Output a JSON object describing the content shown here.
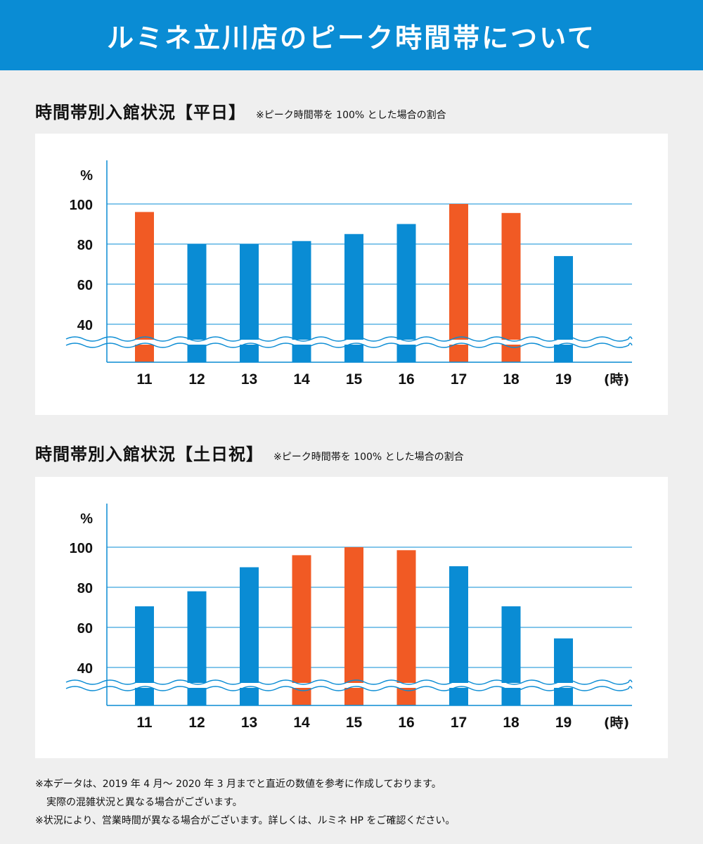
{
  "page": {
    "title": "ルミネ立川店のピーク時間帯について"
  },
  "colors": {
    "banner": "#0a8cd4",
    "bar_normal": "#0a8cd4",
    "bar_peak": "#f15a24",
    "grid": "#0a8cd4",
    "background": "#efefef",
    "panel": "#ffffff"
  },
  "sections": [
    {
      "title": "時間帯別入館状況【平日】",
      "note": "※ピーク時間帯を 100% とした場合の割合"
    },
    {
      "title": "時間帯別入館状況【土日祝】",
      "note": "※ピーク時間帯を 100% とした場合の割合"
    }
  ],
  "chart_data": [
    {
      "type": "bar",
      "categories": [
        "11",
        "12",
        "13",
        "14",
        "15",
        "16",
        "17",
        "18",
        "19"
      ],
      "values": [
        96,
        80,
        80,
        81.5,
        85,
        90,
        100,
        95.5,
        74
      ],
      "highlight": [
        true,
        false,
        false,
        false,
        false,
        false,
        true,
        true,
        false
      ],
      "y_unit": "%",
      "x_unit": "(時)",
      "yticks": [
        100,
        80,
        60,
        40
      ],
      "ylim": [
        30,
        100
      ],
      "axis_break": true,
      "grid": true
    },
    {
      "type": "bar",
      "categories": [
        "11",
        "12",
        "13",
        "14",
        "15",
        "16",
        "17",
        "18",
        "19"
      ],
      "values": [
        70.5,
        78,
        90,
        96,
        100,
        98.5,
        90.5,
        70.5,
        54.5
      ],
      "highlight": [
        false,
        false,
        false,
        true,
        true,
        true,
        false,
        false,
        false
      ],
      "y_unit": "%",
      "x_unit": "(時)",
      "yticks": [
        100,
        80,
        60,
        40
      ],
      "ylim": [
        30,
        100
      ],
      "axis_break": true,
      "grid": true
    }
  ],
  "footnotes": [
    "※本データは、2019 年 4 月〜 2020 年 3 月までと直近の数値を参考に作成しております。",
    "実際の混雑状況と異なる場合がございます。",
    "※状況により、営業時間が異なる場合がございます。詳しくは、ルミネ HP をご確認ください。"
  ]
}
